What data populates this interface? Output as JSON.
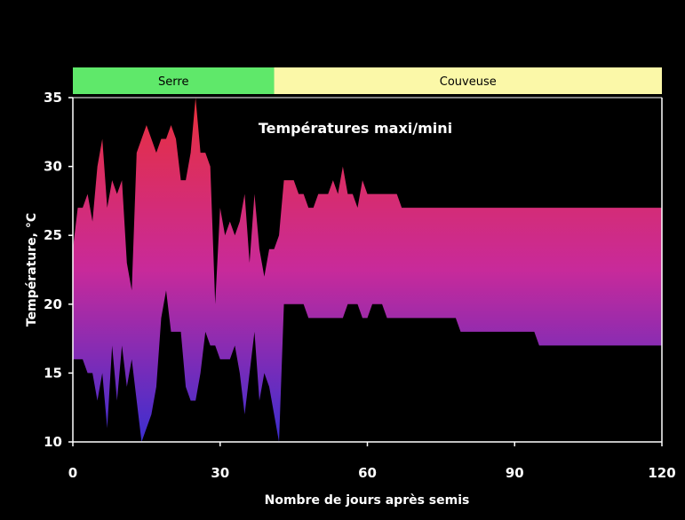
{
  "chart_data": {
    "type": "area",
    "title": "Températures maxi/mini",
    "xlabel": "Nombre de jours après semis",
    "ylabel": "Température, °C",
    "xlim": [
      0,
      120
    ],
    "ylim": [
      10,
      35
    ],
    "x_ticks": [
      0,
      30,
      60,
      90,
      120
    ],
    "y_ticks": [
      10,
      15,
      20,
      25,
      30,
      35
    ],
    "grid": false,
    "colors": {
      "background": "#000000",
      "fill_top": "#e8303a",
      "fill_mid": "#c82a9a",
      "fill_bottom": "#3b2ed0",
      "serre": "#5fe86a",
      "couveuse": "#fbf8a8"
    },
    "phases": [
      {
        "label": "Serre",
        "start": 0,
        "end": 41
      },
      {
        "label": "Couveuse",
        "start": 41,
        "end": 120
      }
    ],
    "x": [
      0,
      1,
      2,
      3,
      4,
      5,
      6,
      7,
      8,
      9,
      10,
      11,
      12,
      13,
      14,
      15,
      16,
      17,
      18,
      19,
      20,
      21,
      22,
      23,
      24,
      25,
      26,
      27,
      28,
      29,
      30,
      31,
      32,
      33,
      34,
      35,
      36,
      37,
      38,
      39,
      40,
      41,
      42,
      43,
      44,
      45,
      46,
      47,
      48,
      49,
      50,
      51,
      52,
      53,
      54,
      55,
      56,
      57,
      58,
      59,
      60,
      61,
      62,
      63,
      64,
      65,
      66,
      67,
      68,
      69,
      78,
      79,
      94,
      95,
      120
    ],
    "series": [
      {
        "name": "maxi",
        "values": [
          24,
          27,
          27,
          28,
          26,
          30,
          32,
          27,
          29,
          28,
          29,
          23,
          21,
          31,
          32,
          33,
          32,
          31,
          32,
          32,
          33,
          32,
          29,
          29,
          31,
          35,
          31,
          31,
          30,
          20,
          27,
          25,
          26,
          25,
          26,
          28,
          23,
          28,
          24,
          22,
          24,
          24,
          25,
          29,
          29,
          29,
          28,
          28,
          27,
          27,
          28,
          28,
          28,
          29,
          28,
          30,
          28,
          28,
          27,
          29,
          28,
          28,
          28,
          28,
          28,
          28,
          28,
          27,
          27,
          27,
          27,
          27,
          27,
          27,
          27
        ]
      },
      {
        "name": "mini",
        "values": [
          16,
          16,
          16,
          15,
          15,
          13,
          15,
          11,
          17,
          13,
          17,
          14,
          16,
          13,
          10,
          11,
          12,
          14,
          19,
          21,
          18,
          18,
          18,
          14,
          13,
          13,
          15,
          18,
          17,
          17,
          16,
          16,
          16,
          17,
          15,
          12,
          15,
          18,
          13,
          15,
          14,
          12,
          10,
          20,
          20,
          20,
          20,
          20,
          19,
          19,
          19,
          19,
          19,
          19,
          19,
          19,
          20,
          20,
          20,
          19,
          19,
          20,
          20,
          20,
          19,
          19,
          19,
          19,
          19,
          19,
          19,
          18,
          18,
          17,
          17
        ]
      }
    ]
  }
}
